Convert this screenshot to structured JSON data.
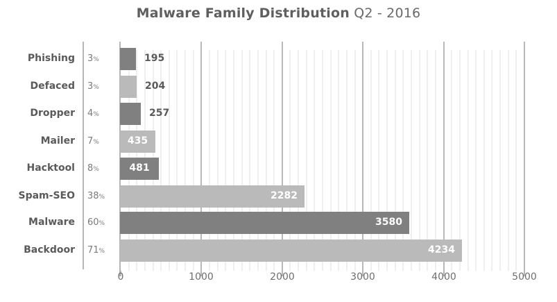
{
  "title": {
    "bold": "Malware Family Distribution",
    "light": "Q2 - 2016"
  },
  "chart_data": {
    "type": "bar",
    "orientation": "horizontal",
    "title": "Malware Family Distribution Q2 - 2016",
    "xlabel": "",
    "ylabel": "",
    "xlim": [
      0,
      5000
    ],
    "x_ticks": [
      "0",
      "1000",
      "2000",
      "3000",
      "4000",
      "5000"
    ],
    "grid": true,
    "legend": null,
    "categories": [
      "Phishing",
      "Defaced",
      "Dropper",
      "Mailer",
      "Hacktool",
      "Spam-SEO",
      "Malware",
      "Backdoor"
    ],
    "values": [
      195,
      204,
      257,
      435,
      481,
      2282,
      3580,
      4234
    ],
    "percentages": [
      "3",
      "3",
      "4",
      "7",
      "8",
      "38",
      "60",
      "71"
    ],
    "value_labels": [
      "195",
      "204",
      "257",
      "435",
      "481",
      "2282",
      "3580",
      "4234"
    ],
    "bar_colors": [
      "#808080",
      "#bababa",
      "#808080",
      "#bababa",
      "#808080",
      "#bababa",
      "#808080",
      "#bababa"
    ]
  },
  "labels": {
    "pct_suffix": "%"
  },
  "colors": {
    "dark_bar": "#808080",
    "light_bar": "#bababa",
    "text": "#5a5a5a"
  }
}
